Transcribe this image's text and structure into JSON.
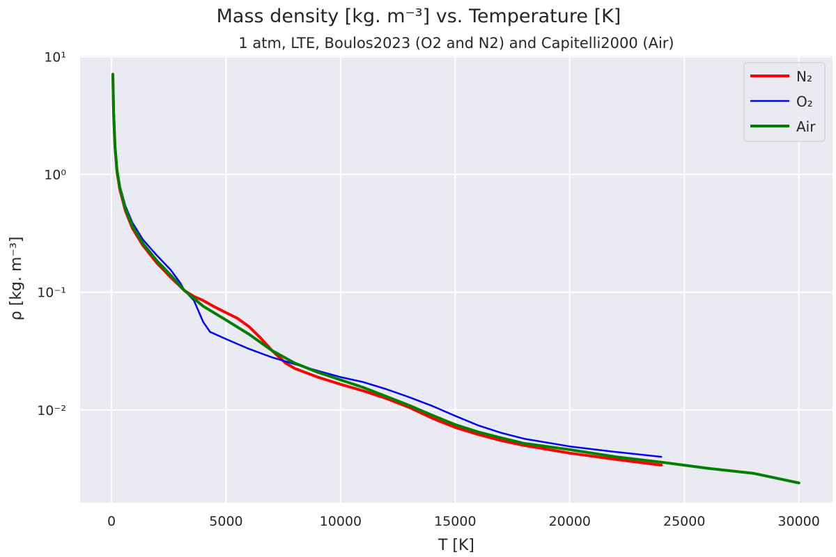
{
  "chart_data": {
    "type": "line",
    "title": "Mass density [kg. m⁻³] vs. Temperature [K]",
    "subtitle": "1 atm, LTE, Boulos2023 (O2 and N2) and Capitelli2000 (Air)",
    "xlabel": "T [K]",
    "ylabel": "ρ [kg. m⁻³]",
    "xlim": [
      -1370,
      31470
    ],
    "ylim": [
      0.00163,
      10.2
    ],
    "yscale": "log",
    "grid": true,
    "legend_position": "top-right",
    "xticks": [
      0,
      5000,
      10000,
      15000,
      20000,
      25000,
      30000
    ],
    "xtick_labels": [
      "0",
      "5000",
      "10000",
      "15000",
      "20000",
      "25000",
      "30000"
    ],
    "yticks": [
      10,
      1,
      0.1,
      0.01
    ],
    "ytick_labels": [
      "10¹",
      "10⁰",
      "10⁻¹",
      "10⁻²"
    ],
    "background_color": "#eaeaf2",
    "series": [
      {
        "name": "N₂",
        "color": "#ff0000",
        "x": [
          60,
          90,
          150,
          240,
          365,
          610,
          910,
          1370,
          1980,
          2580,
          3190,
          3600,
          4000,
          4500,
          5000,
          5500,
          6000,
          6500,
          7000,
          7600,
          8000,
          9000,
          10000,
          11000,
          12000,
          13000,
          14000,
          15000,
          16000,
          17000,
          18000,
          20000,
          22000,
          24000
        ],
        "y": [
          7.1,
          3.45,
          1.75,
          1.06,
          0.74,
          0.49,
          0.35,
          0.25,
          0.177,
          0.134,
          0.103,
          0.092,
          0.085,
          0.075,
          0.067,
          0.06,
          0.051,
          0.041,
          0.032,
          0.025,
          0.0225,
          0.019,
          0.0165,
          0.0145,
          0.0125,
          0.0105,
          0.0085,
          0.0071,
          0.0062,
          0.0055,
          0.005,
          0.0043,
          0.0038,
          0.0034
        ]
      },
      {
        "name": "O₂",
        "color": "#0000ff",
        "x": [
          60,
          90,
          150,
          240,
          365,
          610,
          910,
          1370,
          1980,
          2580,
          3000,
          3190,
          3600,
          4000,
          4300,
          5000,
          6000,
          7000,
          8000,
          9000,
          10000,
          11000,
          12000,
          13000,
          14000,
          15000,
          16000,
          17000,
          18000,
          20000,
          22000,
          24000
        ],
        "y": [
          7.1,
          3.45,
          1.78,
          1.12,
          0.8,
          0.54,
          0.39,
          0.28,
          0.205,
          0.155,
          0.12,
          0.103,
          0.085,
          0.056,
          0.046,
          0.04,
          0.033,
          0.028,
          0.0245,
          0.0215,
          0.019,
          0.0172,
          0.015,
          0.0128,
          0.0108,
          0.0089,
          0.0074,
          0.0064,
          0.0057,
          0.0049,
          0.0044,
          0.004
        ]
      },
      {
        "name": "Air",
        "color": "#008000",
        "x": [
          60,
          90,
          150,
          240,
          365,
          610,
          910,
          1370,
          1980,
          2580,
          3190,
          4000,
          5000,
          6000,
          7000,
          8000,
          9000,
          10000,
          11000,
          12000,
          13000,
          14000,
          15000,
          16000,
          17000,
          18000,
          20000,
          22000,
          24000,
          26000,
          28000,
          30000
        ],
        "y": [
          7.1,
          3.45,
          1.75,
          1.09,
          0.77,
          0.51,
          0.365,
          0.26,
          0.185,
          0.14,
          0.103,
          0.076,
          0.058,
          0.044,
          0.032,
          0.025,
          0.0209,
          0.018,
          0.0155,
          0.013,
          0.0109,
          0.009,
          0.0075,
          0.0065,
          0.0058,
          0.0052,
          0.0046,
          0.004,
          0.0036,
          0.0032,
          0.0029,
          0.0024
        ]
      }
    ]
  }
}
